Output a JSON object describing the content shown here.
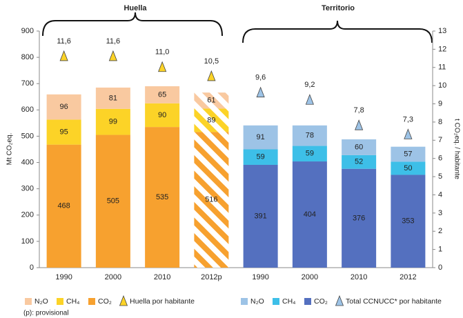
{
  "chart_data": {
    "type": "bar",
    "stacked": true,
    "ylabel": "Mt CO₂eq.",
    "y2label": "t CO₂eq. / habitante",
    "annotations": [
      "Huella",
      "Territorio",
      "(p): provisional"
    ],
    "categories": [
      "1990",
      "2000",
      "2010",
      "2012p",
      "1990",
      "2000",
      "2010",
      "2012"
    ],
    "hatched": [
      false,
      false,
      false,
      true,
      false,
      false,
      false,
      false
    ],
    "series": [
      {
        "name": "N₂O",
        "color": "#f9c9a0",
        "values": [
          96,
          81,
          65,
          61,
          null,
          null,
          null,
          null
        ]
      },
      {
        "name": "CH₄",
        "color": "#fcd327",
        "values": [
          95,
          99,
          90,
          89,
          null,
          null,
          null,
          null
        ]
      },
      {
        "name": "CO₂",
        "color": "#f7a12f",
        "values": [
          468,
          505,
          535,
          516,
          null,
          null,
          null,
          null
        ]
      },
      {
        "name": "N₂O",
        "color": "#9dc3e6",
        "values": [
          null,
          null,
          null,
          null,
          91,
          78,
          60,
          57
        ]
      },
      {
        "name": "CH₄",
        "color": "#3dbfe8",
        "values": [
          null,
          null,
          null,
          null,
          59,
          59,
          52,
          50
        ]
      },
      {
        "name": "CO₂",
        "color": "#5470bf",
        "values": [
          null,
          null,
          null,
          null,
          391,
          404,
          376,
          353
        ]
      },
      {
        "name": "Huella por habitante",
        "color": "#fcd327",
        "axis": "y2",
        "marker": "triangle",
        "values": [
          11.6,
          11.6,
          11.0,
          10.5,
          null,
          null,
          null,
          null
        ],
        "value_labels": [
          "11,6",
          "11,6",
          "11,0",
          "10,5",
          null,
          null,
          null,
          null
        ]
      },
      {
        "name": "Total CCNUCC* por habitante",
        "color": "#9dc3e6",
        "axis": "y2",
        "marker": "triangle",
        "values": [
          null,
          null,
          null,
          null,
          9.6,
          9.2,
          7.8,
          7.3
        ],
        "value_labels": [
          null,
          null,
          null,
          null,
          "9,6",
          "9,2",
          "7,8",
          "7,3"
        ]
      }
    ],
    "ylim": [
      0,
      900
    ],
    "yticks": [
      0,
      100,
      200,
      300,
      400,
      500,
      600,
      700,
      800,
      900
    ],
    "y2lim": [
      0,
      13
    ],
    "y2ticks": [
      0,
      1,
      2,
      3,
      4,
      5,
      6,
      7,
      8,
      9,
      10,
      11,
      12,
      13
    ],
    "legend": "bottom"
  }
}
